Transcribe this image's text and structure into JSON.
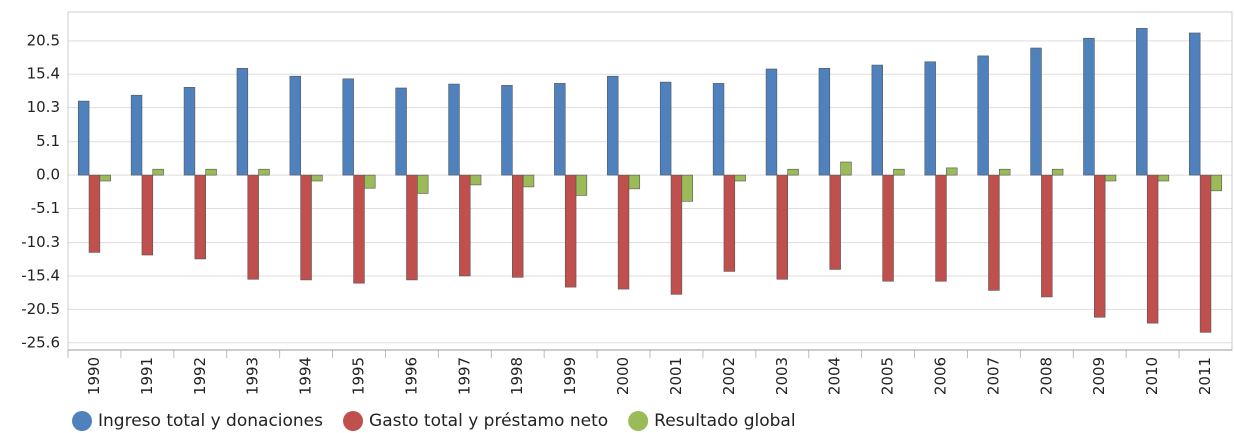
{
  "chart_data": {
    "type": "bar",
    "categories": [
      "1990",
      "1991",
      "1992",
      "1993",
      "1994",
      "1995",
      "1996",
      "1997",
      "1998",
      "1999",
      "2000",
      "2001",
      "2002",
      "2003",
      "2004",
      "2005",
      "2006",
      "2007",
      "2008",
      "2009",
      "2010",
      "2011"
    ],
    "series": [
      {
        "name": "Ingreso total y donaciones",
        "color": "#4f81bd",
        "values": [
          11.3,
          12.2,
          13.4,
          16.3,
          15.1,
          14.7,
          13.3,
          13.9,
          13.7,
          14.0,
          15.1,
          14.2,
          14.0,
          16.2,
          16.3,
          16.8,
          17.3,
          18.2,
          19.4,
          20.9,
          22.4,
          21.7
        ]
      },
      {
        "name": "Gasto total y préstamo neto",
        "color": "#c0504d",
        "values": [
          -11.8,
          -12.2,
          -12.8,
          -15.9,
          -16.0,
          -16.5,
          -16.0,
          -15.4,
          -15.6,
          -17.1,
          -17.4,
          -18.2,
          -14.7,
          -15.9,
          -14.4,
          -16.2,
          -16.2,
          -17.6,
          -18.6,
          -21.7,
          -22.6,
          -24.0
        ]
      },
      {
        "name": "Resultado global",
        "color": "#9bbb59",
        "values": [
          -0.9,
          0.9,
          0.9,
          0.9,
          -0.9,
          -2.0,
          -2.8,
          -1.5,
          -1.8,
          -3.1,
          -2.1,
          -4.0,
          -0.9,
          0.9,
          2.0,
          0.9,
          1.1,
          0.9,
          0.9,
          -0.9,
          -0.9,
          -2.4
        ]
      }
    ],
    "ylim": [
      -26.7,
      24.9
    ],
    "yticks": [
      20.5,
      15.4,
      10.3,
      5.1,
      {
        "value": 0,
        "label": "0.0"
      },
      -5.1,
      -10.3,
      -15.4,
      -20.5,
      -25.6
    ],
    "grid": true,
    "legend": "bottom-left"
  }
}
